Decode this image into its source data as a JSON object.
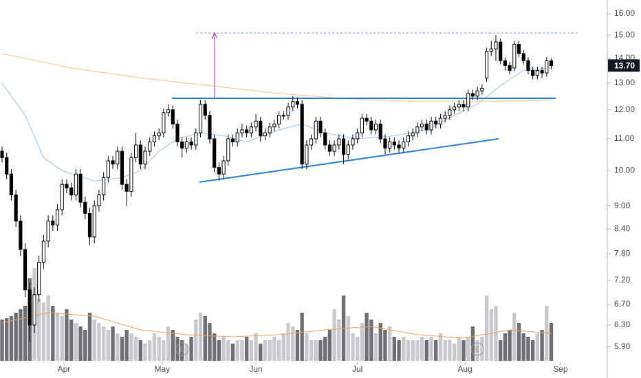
{
  "chart_data": {
    "type": "candlestick",
    "log_scale": true,
    "grid": false,
    "ylim": [
      5.66,
      16.67
    ],
    "yticks": [
      {
        "value": 5.9,
        "label": "5.90"
      },
      {
        "value": 6.3,
        "label": "6.30"
      },
      {
        "value": 6.7,
        "label": "6.70"
      },
      {
        "value": 7.2,
        "label": "7.20"
      },
      {
        "value": 7.8,
        "label": "7.80"
      },
      {
        "value": 8.4,
        "label": "8.40"
      },
      {
        "value": 9,
        "label": "9.00"
      },
      {
        "value": 10,
        "label": "10.00"
      },
      {
        "value": 11,
        "label": "11.00"
      },
      {
        "value": 12,
        "label": "12.00"
      },
      {
        "value": 13,
        "label": "13.00"
      },
      {
        "value": 14,
        "label": "14.00"
      },
      {
        "value": 15,
        "label": "15.00"
      },
      {
        "value": 16,
        "label": "16.00"
      }
    ],
    "xlim": [
      -0.45,
      130.7
    ],
    "xticks": [
      {
        "value": 13.4,
        "label": "Apr"
      },
      {
        "value": 34.7,
        "label": "May"
      },
      {
        "value": 55,
        "label": "Jun"
      },
      {
        "value": 77,
        "label": "Jul"
      },
      {
        "value": 100.3,
        "label": "Aug"
      },
      {
        "value": 121,
        "label": "Sep"
      }
    ],
    "up_color": "#ffffff",
    "down_color": "#000000",
    "open": [
      10.6,
      10.4,
      9.9,
      9.3,
      8.6,
      7.9,
      7.0,
      6.3,
      6.9,
      7.6,
      8.1,
      8.6,
      8.5,
      8.9,
      9.6,
      9.5,
      9.3,
      9.9,
      9.1,
      8.8,
      8.2,
      9.0,
      9.3,
      9.8,
      10.3,
      10.2,
      10.6,
      9.6,
      9.4,
      10.4,
      10.8,
      10.2,
      10.6,
      10.9,
      11.1,
      11.2,
      11.9,
      12.0,
      11.5,
      10.9,
      10.7,
      10.9,
      10.8,
      11.2,
      12.2,
      11.8,
      11.0,
      10.1,
      9.9,
      10.3,
      11.0,
      10.9,
      11.2,
      11.3,
      11.2,
      11.4,
      11.6,
      11.1,
      11.2,
      11.4,
      11.5,
      11.8,
      11.8,
      12.1,
      12.3,
      12.2,
      10.2,
      10.8,
      11.0,
      11.6,
      11.2,
      10.8,
      10.6,
      10.8,
      11.0,
      10.5,
      10.8,
      11.0,
      11.2,
      11.7,
      11.6,
      11.3,
      11.5,
      11.0,
      10.7,
      10.9,
      10.8,
      10.7,
      10.9,
      11.1,
      11.2,
      11.4,
      11.5,
      11.3,
      11.6,
      11.5,
      11.7,
      11.8,
      12.0,
      12.1,
      12.2,
      12.1,
      12.6,
      12.5,
      12.7,
      13.2,
      14.3,
      14.4,
      14.7,
      13.9,
      13.7,
      13.6,
      14.6,
      14.2,
      13.9,
      13.5,
      13.3,
      13.5,
      13.4,
      13.9
    ],
    "high": [
      10.75,
      10.55,
      10.05,
      9.45,
      8.75,
      8.05,
      7.15,
      7.05,
      7.75,
      8.25,
      8.75,
      8.75,
      9.05,
      9.75,
      9.75,
      9.65,
      10.05,
      10.05,
      9.25,
      8.95,
      9.15,
      9.45,
      9.95,
      10.45,
      10.45,
      10.75,
      10.75,
      9.75,
      10.55,
      11.2,
      10.95,
      10.75,
      11.05,
      11.25,
      11.35,
      12.05,
      12.2,
      12.15,
      11.65,
      11.05,
      11.05,
      11.05,
      11.35,
      12.35,
      12.35,
      11.95,
      11.15,
      10.25,
      10.45,
      11.15,
      11.15,
      11.35,
      11.5,
      11.45,
      11.55,
      11.85,
      11.75,
      11.35,
      11.55,
      11.65,
      11.95,
      11.95,
      12.25,
      12.5,
      12.45,
      12.35,
      10.95,
      11.15,
      11.75,
      11.75,
      11.35,
      10.95,
      10.95,
      11.15,
      11.15,
      10.95,
      11.15,
      11.35,
      11.85,
      11.85,
      11.75,
      11.65,
      11.65,
      11.15,
      11.05,
      11.05,
      10.95,
      11.05,
      11.25,
      11.35,
      11.55,
      11.65,
      11.65,
      11.75,
      11.75,
      11.85,
      11.95,
      12.15,
      12.25,
      12.35,
      12.35,
      12.75,
      12.75,
      12.85,
      12.95,
      14.45,
      14.75,
      15.0,
      14.85,
      14.05,
      13.85,
      14.75,
      14.75,
      14.35,
      14.05,
      13.65,
      13.65,
      13.65,
      14.05,
      14.0
    ],
    "low": [
      10.25,
      9.75,
      9.15,
      8.45,
      7.75,
      6.85,
      6.0,
      6.15,
      6.75,
      7.45,
      7.95,
      8.35,
      8.35,
      8.75,
      9.35,
      9.15,
      9.15,
      8.95,
      8.65,
      8.0,
      8.05,
      8.85,
      9.15,
      9.65,
      10.05,
      10.05,
      9.45,
      9.0,
      9.25,
      10.25,
      10.05,
      10.05,
      10.45,
      10.75,
      10.95,
      11.05,
      11.75,
      11.35,
      10.75,
      10.4,
      10.55,
      10.65,
      10.65,
      11.05,
      11.65,
      10.85,
      9.95,
      9.7,
      9.75,
      10.15,
      10.75,
      10.75,
      11.05,
      11.05,
      11.05,
      11.25,
      10.9,
      10.95,
      11.05,
      11.25,
      11.35,
      11.65,
      11.65,
      11.95,
      12.05,
      10.05,
      10.05,
      10.65,
      10.85,
      11.05,
      10.65,
      10.45,
      10.45,
      10.65,
      10.2,
      10.35,
      10.65,
      10.85,
      11.05,
      11.45,
      11.15,
      11.15,
      10.85,
      10.5,
      10.55,
      10.65,
      10.55,
      10.55,
      10.75,
      10.95,
      11.05,
      11.25,
      11.15,
      11.15,
      11.35,
      11.35,
      11.55,
      11.65,
      11.85,
      11.95,
      11.95,
      11.95,
      12.35,
      12.35,
      12.55,
      13.05,
      14.1,
      13.9,
      13.75,
      13.5,
      13.35,
      13.45,
      14.05,
      13.75,
      13.35,
      13.15,
      13.15,
      13.2,
      13.25,
      13.55
    ],
    "close": [
      10.4,
      9.9,
      9.3,
      8.6,
      7.9,
      7.0,
      6.3,
      6.9,
      7.6,
      8.1,
      8.6,
      8.5,
      8.9,
      9.6,
      9.5,
      9.3,
      9.9,
      9.1,
      8.8,
      8.2,
      9.0,
      9.3,
      9.8,
      10.3,
      10.2,
      10.6,
      9.6,
      9.4,
      10.4,
      10.8,
      10.2,
      10.6,
      10.9,
      11.1,
      11.2,
      11.9,
      12.0,
      11.5,
      10.9,
      10.7,
      10.9,
      10.8,
      11.2,
      12.2,
      11.8,
      11.0,
      10.1,
      9.9,
      10.3,
      11.0,
      10.9,
      11.2,
      11.3,
      11.2,
      11.4,
      11.6,
      11.1,
      11.2,
      11.4,
      11.5,
      11.8,
      11.8,
      12.1,
      12.3,
      12.2,
      10.2,
      10.8,
      11.0,
      11.6,
      11.2,
      10.8,
      10.6,
      10.8,
      11.0,
      10.5,
      10.8,
      11.0,
      11.2,
      11.7,
      11.6,
      11.3,
      11.5,
      11.0,
      10.7,
      10.9,
      10.8,
      10.7,
      10.9,
      11.1,
      11.2,
      11.4,
      11.5,
      11.3,
      11.6,
      11.5,
      11.7,
      11.8,
      12.0,
      12.1,
      12.2,
      12.1,
      12.6,
      12.5,
      12.7,
      12.8,
      14.3,
      14.4,
      14.7,
      13.9,
      13.7,
      13.5,
      14.6,
      14.2,
      13.9,
      13.5,
      13.3,
      13.5,
      13.4,
      13.9,
      13.7
    ],
    "volume": [
      60,
      62,
      65,
      70,
      75,
      80,
      120,
      135,
      90,
      85,
      95,
      80,
      70,
      65,
      75,
      60,
      55,
      50,
      45,
      70,
      60,
      55,
      50,
      45,
      50,
      40,
      35,
      45,
      40,
      35,
      30,
      25,
      30,
      40,
      35,
      30,
      50,
      45,
      35,
      30,
      25,
      35,
      60,
      70,
      65,
      55,
      40,
      30,
      35,
      30,
      25,
      30,
      30,
      35,
      30,
      40,
      25,
      30,
      30,
      35,
      30,
      40,
      55,
      50,
      45,
      70,
      40,
      30,
      30,
      30,
      35,
      45,
      75,
      60,
      95,
      65,
      40,
      35,
      55,
      70,
      60,
      40,
      55,
      45,
      50,
      35,
      30,
      35,
      30,
      30,
      30,
      35,
      30,
      35,
      30,
      40,
      30,
      30,
      25,
      35,
      30,
      35,
      50,
      30,
      35,
      95,
      75,
      80,
      30,
      40,
      45,
      70,
      55,
      40,
      35,
      30,
      40,
      45,
      80,
      55
    ],
    "volume_colors": {
      "up": "#c8c9cc",
      "down": "#6e6f73"
    },
    "moving_averages": [
      {
        "color": "#aacbee",
        "x": [
          0,
          5,
          9,
          13,
          20,
          26,
          30,
          34,
          38,
          43,
          48,
          53,
          60,
          65,
          70,
          77,
          85,
          92,
          98,
          103,
          108,
          113,
          119
        ],
        "values": [
          13.0,
          11.8,
          10.4,
          10.0,
          9.7,
          9.8,
          10.0,
          10.6,
          11.0,
          11.2,
          11.1,
          10.9,
          11.3,
          11.5,
          11.2,
          11.0,
          11.1,
          11.3,
          11.8,
          12.2,
          12.9,
          13.5,
          13.6
        ]
      },
      {
        "color": "#f7c99a",
        "x": [
          0,
          15,
          30,
          45,
          60,
          75,
          90,
          105,
          119
        ],
        "values": [
          14.2,
          13.6,
          13.2,
          12.9,
          12.6,
          12.4,
          12.3,
          12.3,
          12.35
        ]
      }
    ],
    "volume_average": {
      "color": "#f0a060",
      "x": [
        0,
        10,
        20,
        30,
        40,
        50,
        60,
        70,
        80,
        90,
        100,
        110,
        119
      ],
      "values": [
        55,
        70,
        65,
        45,
        38,
        35,
        38,
        45,
        50,
        38,
        33,
        45,
        40
      ]
    },
    "earnings": [
      {
        "x": 39,
        "label": "E"
      },
      {
        "x": 103,
        "label": "E"
      }
    ],
    "last_price": {
      "value": 13.7,
      "label": "13.70",
      "color": "#131722"
    }
  }
}
